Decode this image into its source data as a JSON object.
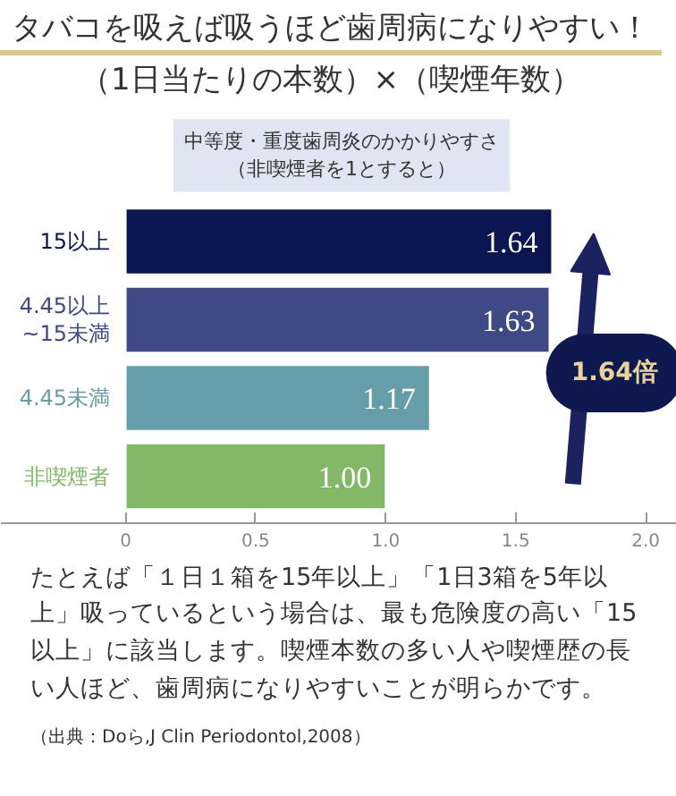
{
  "chart_data": {
    "type": "bar",
    "orientation": "horizontal",
    "title": "タバコを吸えば吸うほど歯周病になりやすい！",
    "subtitle": "（1日当たりの本数）×（喫煙年数）",
    "categories": [
      "15以上",
      "4.45以上\n~15未満",
      "4.45未満",
      "非喫煙者"
    ],
    "values": [
      1.64,
      1.63,
      1.17,
      1.0
    ],
    "value_labels": [
      "1.64",
      "1.63",
      "1.17",
      "1.00"
    ],
    "colors": [
      "#0b154f",
      "#3f4a85",
      "#659ea8",
      "#82b866"
    ],
    "xlim": [
      -0.48,
      2.12
    ],
    "xticks": [
      0,
      {
        "value": 0.5,
        "label": "0.5"
      },
      {
        "value": 1.0,
        "label": "1.0"
      },
      {
        "value": 1.5,
        "label": "1.5"
      },
      {
        "value": 2.0,
        "label": "2.0"
      }
    ],
    "grid": false,
    "annotations": [
      "中等度・重度歯周炎のかかりやすさ",
      "（非喫煙者を1とすると）",
      "1.64倍",
      "たとえば「１日１箱を15年以上」「1日3箱を5年以上」吸っているという場合は、最も危険度の高い「15以上」に該当します。喫煙本数の多い人や喫煙歴の長い人ほど、歯周病になりやすいことが明らかです。",
      "（出典：Doら,J Clin Periodontol,2008）"
    ]
  }
}
